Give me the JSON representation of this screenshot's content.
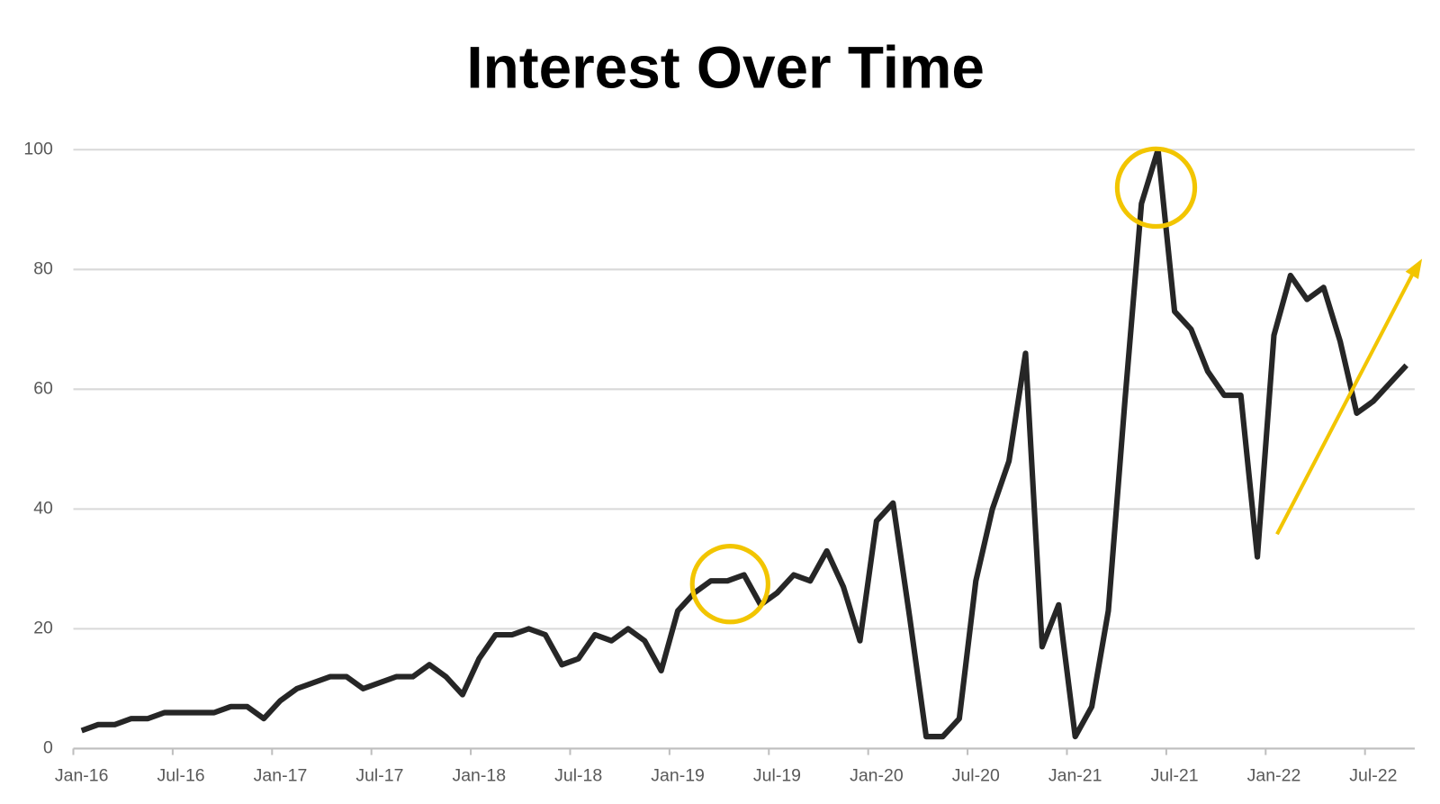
{
  "chart_data": {
    "type": "line",
    "title": "Interest Over Time",
    "categories": [
      "Jan-16",
      null,
      null,
      null,
      null,
      null,
      "Jul-16",
      null,
      null,
      null,
      null,
      null,
      "Jan-17",
      null,
      null,
      null,
      null,
      null,
      "Jul-17",
      null,
      null,
      null,
      null,
      null,
      "Jan-18",
      null,
      null,
      null,
      null,
      null,
      "Jul-18",
      null,
      null,
      null,
      null,
      null,
      "Jan-19",
      null,
      null,
      null,
      null,
      null,
      "Jul-19",
      null,
      null,
      null,
      null,
      null,
      "Jan-20",
      null,
      null,
      null,
      null,
      null,
      "Jul-20",
      null,
      null,
      null,
      null,
      null,
      "Jan-21",
      null,
      null,
      null,
      null,
      null,
      "Jul-21",
      null,
      null,
      null,
      null,
      null,
      "Jan-22",
      null,
      null,
      null,
      null,
      null,
      "Jul-22",
      null,
      null
    ],
    "values": [
      3,
      4,
      4,
      5,
      5,
      6,
      6,
      6,
      6,
      7,
      7,
      5,
      8,
      10,
      11,
      12,
      12,
      10,
      11,
      12,
      12,
      14,
      12,
      9,
      15,
      19,
      19,
      20,
      19,
      14,
      15,
      19,
      18,
      20,
      18,
      13,
      23,
      26,
      28,
      28,
      29,
      24,
      26,
      29,
      28,
      33,
      27,
      18,
      38,
      41,
      22,
      2,
      2,
      5,
      28,
      40,
      48,
      66,
      17,
      24,
      2,
      7,
      23,
      58,
      91,
      100,
      73,
      70,
      63,
      59,
      59,
      32,
      69,
      79,
      75,
      77,
      68,
      56,
      58,
      61,
      64
    ],
    "color": "#262626",
    "ylim": [
      0,
      100
    ],
    "yticks": [
      0,
      20,
      40,
      60,
      80,
      100
    ],
    "grid": true
  }
}
